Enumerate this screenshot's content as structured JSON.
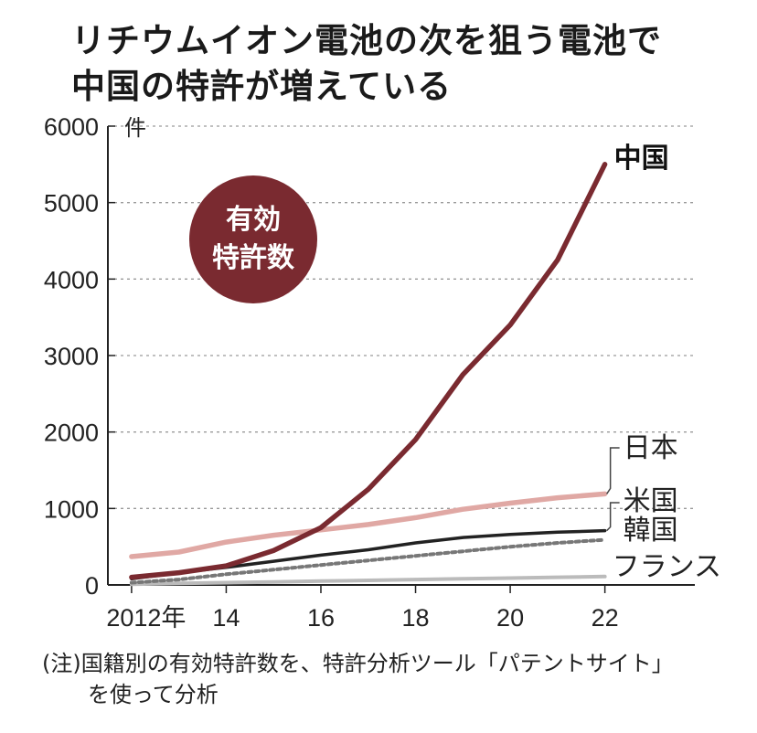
{
  "title_line1": "リチウムイオン電池の次を狙う電池で",
  "title_line2": "中国の特許が増えている",
  "badge_line1": "有効",
  "badge_line2": "特許数",
  "note_line1": "(注)国籍別の有効特許数を、特許分析ツール「パテントサイト」",
  "note_line2": "を使って分析",
  "colors": {
    "china": "#7a2a30",
    "japan": "#e0a8a4",
    "usa": "#222222",
    "korea": "#777777",
    "france": "#bbbbbb",
    "badge": "#7a2a30",
    "grid": "#9a9a9a"
  },
  "chart_data": {
    "type": "line",
    "unit": "件",
    "ylim": [
      0,
      6000
    ],
    "yticks": [
      "0",
      "1000",
      "2000",
      "3000",
      "4000",
      "5000",
      "6000"
    ],
    "xtick_labels": [
      "2012年",
      "14",
      "16",
      "18",
      "20",
      "22"
    ],
    "x": [
      2012,
      2013,
      2014,
      2015,
      2016,
      2017,
      2018,
      2019,
      2020,
      2021,
      2022
    ],
    "grid": "horizontal dashed",
    "series": [
      {
        "name": "中国",
        "style": "solid",
        "values": [
          100,
          160,
          250,
          450,
          750,
          1250,
          1900,
          2750,
          3400,
          4250,
          5500
        ]
      },
      {
        "name": "日本",
        "style": "solid",
        "values": [
          370,
          430,
          560,
          650,
          720,
          790,
          880,
          990,
          1070,
          1140,
          1190
        ]
      },
      {
        "name": "米国",
        "style": "solid",
        "values": [
          80,
          160,
          230,
          310,
          390,
          460,
          550,
          620,
          660,
          690,
          710
        ]
      },
      {
        "name": "韓国",
        "style": "dotted",
        "values": [
          30,
          70,
          140,
          200,
          260,
          320,
          380,
          440,
          500,
          550,
          590
        ]
      },
      {
        "name": "フランス",
        "style": "solid",
        "values": [
          10,
          20,
          30,
          40,
          50,
          60,
          70,
          80,
          90,
          100,
          110
        ]
      }
    ]
  }
}
